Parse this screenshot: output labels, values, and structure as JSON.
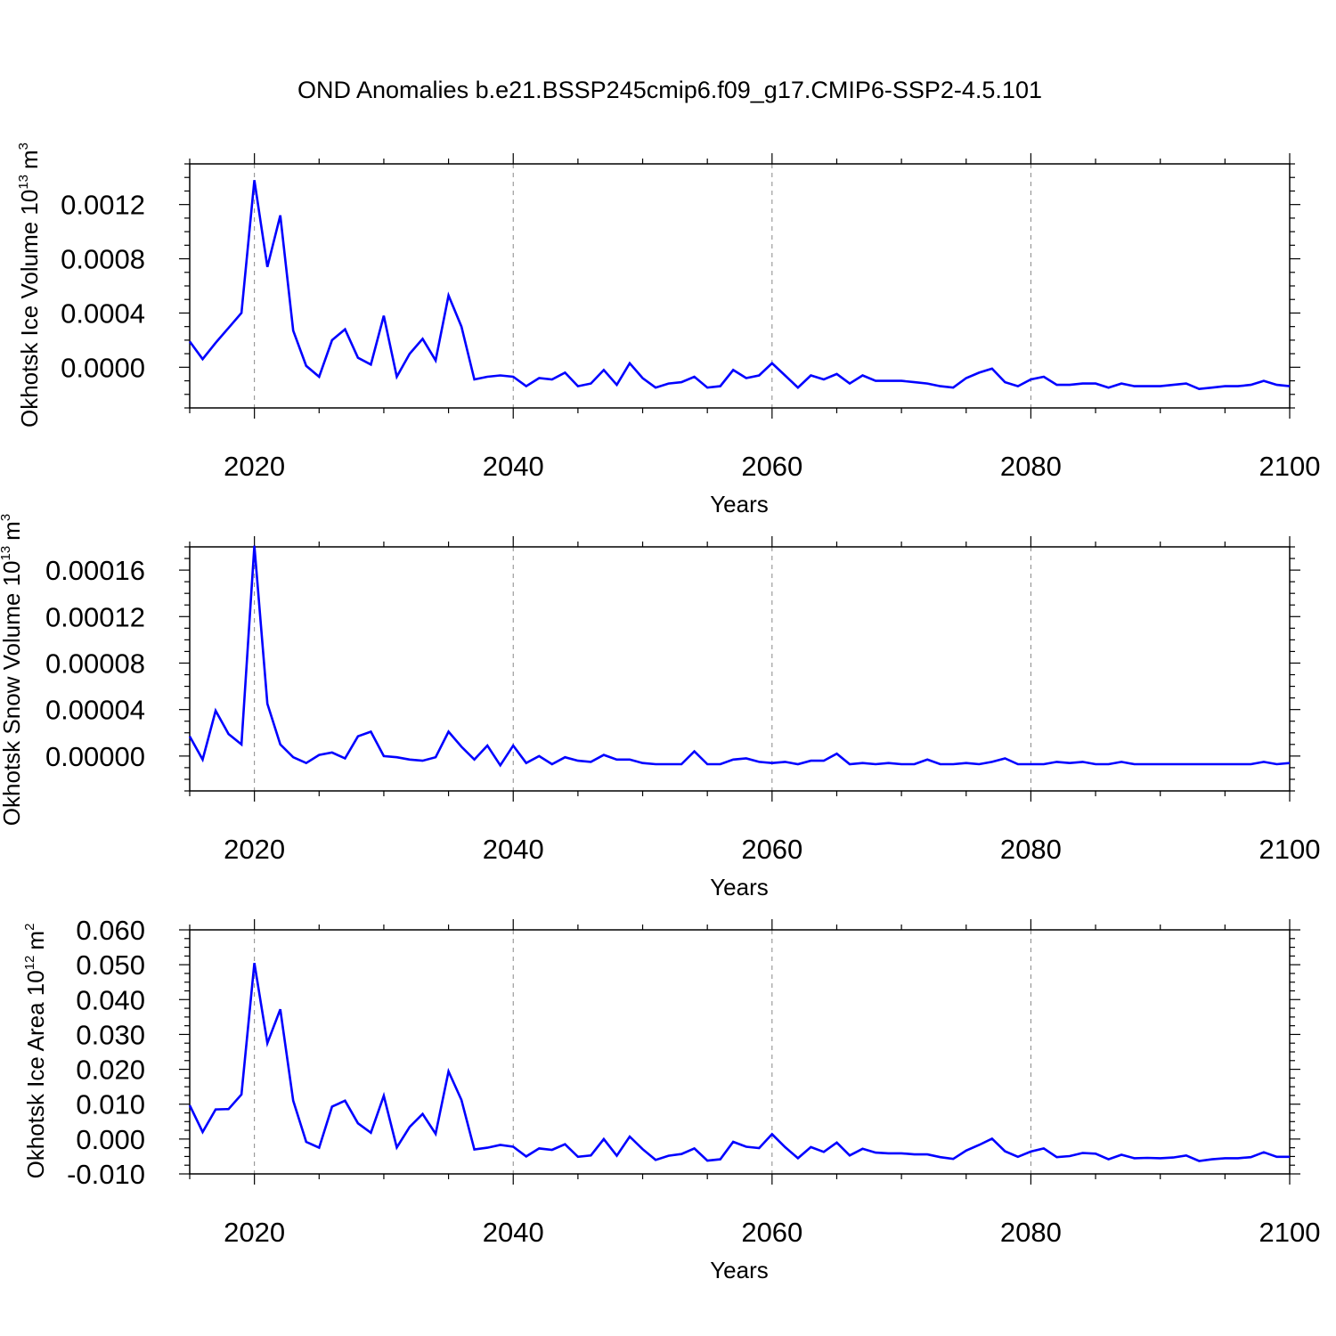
{
  "title": "OND Anomalies b.e21.BSSP245cmip6.f09_g17.CMIP6-SSP2-4.5.101",
  "line_color": "#0000ff",
  "chart_data": [
    {
      "type": "line",
      "ylabel": "Okhotsk Ice Volume 10",
      "ylabel_exp": "13",
      "ylabel_unit": "m",
      "ylabel_unit_exp": "3",
      "xlabel": "Years",
      "xlim": [
        2015,
        2100
      ],
      "ylim": [
        -0.0003,
        0.0015
      ],
      "yticks": [
        "0.0000",
        "0.0004",
        "0.0008",
        "0.0012"
      ],
      "ytick_values": [
        0,
        0.0004,
        0.0008,
        0.0012
      ],
      "xticks": [
        "2020",
        "2040",
        "2060",
        "2080",
        "2100"
      ],
      "xtick_values": [
        2020,
        2040,
        2060,
        2080,
        2100
      ],
      "grid": "vertical dashed at major ticks",
      "x": [
        2015,
        2016,
        2017,
        2018,
        2019,
        2020,
        2021,
        2022,
        2023,
        2024,
        2025,
        2026,
        2027,
        2028,
        2029,
        2030,
        2031,
        2032,
        2033,
        2034,
        2035,
        2036,
        2037,
        2038,
        2039,
        2040,
        2041,
        2042,
        2043,
        2044,
        2045,
        2046,
        2047,
        2048,
        2049,
        2050,
        2051,
        2052,
        2053,
        2054,
        2055,
        2056,
        2057,
        2058,
        2059,
        2060,
        2061,
        2062,
        2063,
        2064,
        2065,
        2066,
        2067,
        2068,
        2069,
        2070,
        2071,
        2072,
        2073,
        2074,
        2075,
        2076,
        2077,
        2078,
        2079,
        2080,
        2081,
        2082,
        2083,
        2084,
        2085,
        2086,
        2087,
        2088,
        2089,
        2090,
        2091,
        2092,
        2093,
        2094,
        2095,
        2096,
        2097,
        2098,
        2099,
        2100
      ],
      "values": [
        0.00019,
        6e-05,
        0.00018,
        0.00029,
        0.0004,
        0.00138,
        0.00074,
        0.00112,
        0.00027,
        1e-05,
        -7e-05,
        0.0002,
        0.00028,
        7e-05,
        2e-05,
        0.00038,
        -7e-05,
        0.0001,
        0.00021,
        5e-05,
        0.00053,
        0.0003,
        -9e-05,
        -7e-05,
        -6e-05,
        -7e-05,
        -0.00014,
        -8e-05,
        -9e-05,
        -4e-05,
        -0.00014,
        -0.00012,
        -2e-05,
        -0.00013,
        3e-05,
        -8e-05,
        -0.00015,
        -0.00012,
        -0.00011,
        -7e-05,
        -0.00015,
        -0.00014,
        -2e-05,
        -8e-05,
        -6e-05,
        3e-05,
        -6e-05,
        -0.00015,
        -6e-05,
        -9e-05,
        -5e-05,
        -0.00012,
        -6e-05,
        -0.0001,
        -0.0001,
        -0.0001,
        -0.00011,
        -0.00012,
        -0.00014,
        -0.00015,
        -8e-05,
        -4e-05,
        -1e-05,
        -0.00011,
        -0.00014,
        -9e-05,
        -7e-05,
        -0.00013,
        -0.00013,
        -0.00012,
        -0.00012,
        -0.00015,
        -0.00012,
        -0.00014,
        -0.00014,
        -0.00014,
        -0.00013,
        -0.00012,
        -0.00016,
        -0.00015,
        -0.00014,
        -0.00014,
        -0.00013,
        -0.0001,
        -0.00013,
        -0.00014
      ]
    },
    {
      "type": "line",
      "ylabel": "Okhotsk Snow Volume 10",
      "ylabel_exp": "13",
      "ylabel_unit": "m",
      "ylabel_unit_exp": "3",
      "xlabel": "Years",
      "xlim": [
        2015,
        2100
      ],
      "ylim": [
        -3e-05,
        0.00018
      ],
      "yticks": [
        "0.00000",
        "0.00004",
        "0.00008",
        "0.00012",
        "0.00016"
      ],
      "ytick_values": [
        0,
        4e-05,
        8e-05,
        0.00012,
        0.00016
      ],
      "xticks": [
        "2020",
        "2040",
        "2060",
        "2080",
        "2100"
      ],
      "xtick_values": [
        2020,
        2040,
        2060,
        2080,
        2100
      ],
      "grid": "vertical dashed at major ticks",
      "x": [
        2015,
        2016,
        2017,
        2018,
        2019,
        2020,
        2021,
        2022,
        2023,
        2024,
        2025,
        2026,
        2027,
        2028,
        2029,
        2030,
        2031,
        2032,
        2033,
        2034,
        2035,
        2036,
        2037,
        2038,
        2039,
        2040,
        2041,
        2042,
        2043,
        2044,
        2045,
        2046,
        2047,
        2048,
        2049,
        2050,
        2051,
        2052,
        2053,
        2054,
        2055,
        2056,
        2057,
        2058,
        2059,
        2060,
        2061,
        2062,
        2063,
        2064,
        2065,
        2066,
        2067,
        2068,
        2069,
        2070,
        2071,
        2072,
        2073,
        2074,
        2075,
        2076,
        2077,
        2078,
        2079,
        2080,
        2081,
        2082,
        2083,
        2084,
        2085,
        2086,
        2087,
        2088,
        2089,
        2090,
        2091,
        2092,
        2093,
        2094,
        2095,
        2096,
        2097,
        2098,
        2099,
        2100
      ],
      "values": [
        1.7e-05,
        -3e-06,
        3.9e-05,
        1.9e-05,
        1e-05,
        0.000181,
        4.5e-05,
        1e-05,
        -1e-06,
        -6e-06,
        1e-06,
        3e-06,
        -2e-06,
        1.7e-05,
        2.1e-05,
        0.0,
        -1e-06,
        -3e-06,
        -4e-06,
        -1e-06,
        2.1e-05,
        8e-06,
        -3e-06,
        9e-06,
        -8e-06,
        9e-06,
        -6e-06,
        0.0,
        -7e-06,
        -1e-06,
        -4e-06,
        -5e-06,
        1e-06,
        -3e-06,
        -3e-06,
        -6e-06,
        -7e-06,
        -7e-06,
        -7e-06,
        4e-06,
        -7e-06,
        -7e-06,
        -3e-06,
        -2e-06,
        -5e-06,
        -6e-06,
        -5e-06,
        -7e-06,
        -4e-06,
        -4e-06,
        2e-06,
        -7e-06,
        -6e-06,
        -7e-06,
        -6e-06,
        -7e-06,
        -7e-06,
        -3e-06,
        -7e-06,
        -7e-06,
        -6e-06,
        -7e-06,
        -5e-06,
        -2e-06,
        -7e-06,
        -7e-06,
        -7e-06,
        -5e-06,
        -6e-06,
        -5e-06,
        -7e-06,
        -7e-06,
        -5e-06,
        -7e-06,
        -7e-06,
        -7e-06,
        -7e-06,
        -7e-06,
        -7e-06,
        -7e-06,
        -7e-06,
        -7e-06,
        -7e-06,
        -5e-06,
        -7e-06,
        -6e-06
      ]
    },
    {
      "type": "line",
      "ylabel": "Okhotsk Ice Area 10",
      "ylabel_exp": "12",
      "ylabel_unit": "m",
      "ylabel_unit_exp": "2",
      "xlabel": "Years",
      "xlim": [
        2015,
        2100
      ],
      "ylim": [
        -0.01,
        0.06
      ],
      "yticks": [
        "-0.010",
        "0.000",
        "0.010",
        "0.020",
        "0.030",
        "0.040",
        "0.050",
        "0.060"
      ],
      "ytick_values": [
        -0.01,
        0,
        0.01,
        0.02,
        0.03,
        0.04,
        0.05,
        0.06
      ],
      "xticks": [
        "2020",
        "2040",
        "2060",
        "2080",
        "2100"
      ],
      "xtick_values": [
        2020,
        2040,
        2060,
        2080,
        2100
      ],
      "grid": "vertical dashed at major ticks",
      "x": [
        2015,
        2016,
        2017,
        2018,
        2019,
        2020,
        2021,
        2022,
        2023,
        2024,
        2025,
        2026,
        2027,
        2028,
        2029,
        2030,
        2031,
        2032,
        2033,
        2034,
        2035,
        2036,
        2037,
        2038,
        2039,
        2040,
        2041,
        2042,
        2043,
        2044,
        2045,
        2046,
        2047,
        2048,
        2049,
        2050,
        2051,
        2052,
        2053,
        2054,
        2055,
        2056,
        2057,
        2058,
        2059,
        2060,
        2061,
        2062,
        2063,
        2064,
        2065,
        2066,
        2067,
        2068,
        2069,
        2070,
        2071,
        2072,
        2073,
        2074,
        2075,
        2076,
        2077,
        2078,
        2079,
        2080,
        2081,
        2082,
        2083,
        2084,
        2085,
        2086,
        2087,
        2088,
        2089,
        2090,
        2091,
        2092,
        2093,
        2094,
        2095,
        2096,
        2097,
        2098,
        2099,
        2100
      ],
      "values": [
        0.0097,
        0.002,
        0.0085,
        0.0086,
        0.0128,
        0.0505,
        0.0275,
        0.0372,
        0.011,
        -0.0008,
        -0.0025,
        0.0093,
        0.011,
        0.0045,
        0.0018,
        0.0124,
        -0.0024,
        0.0035,
        0.0072,
        0.0015,
        0.0194,
        0.0112,
        -0.003,
        -0.0025,
        -0.0017,
        -0.0022,
        -0.005,
        -0.0027,
        -0.0031,
        -0.0015,
        -0.0051,
        -0.0047,
        0.0,
        -0.0048,
        0.0007,
        -0.0029,
        -0.006,
        -0.0048,
        -0.0043,
        -0.0027,
        -0.0062,
        -0.0058,
        -0.0008,
        -0.0022,
        -0.0026,
        0.0014,
        -0.0023,
        -0.0055,
        -0.0023,
        -0.0037,
        -0.001,
        -0.0047,
        -0.0028,
        -0.0039,
        -0.0041,
        -0.0041,
        -0.0044,
        -0.0044,
        -0.0052,
        -0.0057,
        -0.0033,
        -0.0017,
        0.0001,
        -0.0035,
        -0.0051,
        -0.0036,
        -0.0027,
        -0.0052,
        -0.0049,
        -0.004,
        -0.0042,
        -0.0058,
        -0.0045,
        -0.0055,
        -0.0054,
        -0.0055,
        -0.0053,
        -0.0047,
        -0.0063,
        -0.0058,
        -0.0055,
        -0.0055,
        -0.0052,
        -0.0038,
        -0.0051,
        -0.0051
      ]
    }
  ]
}
